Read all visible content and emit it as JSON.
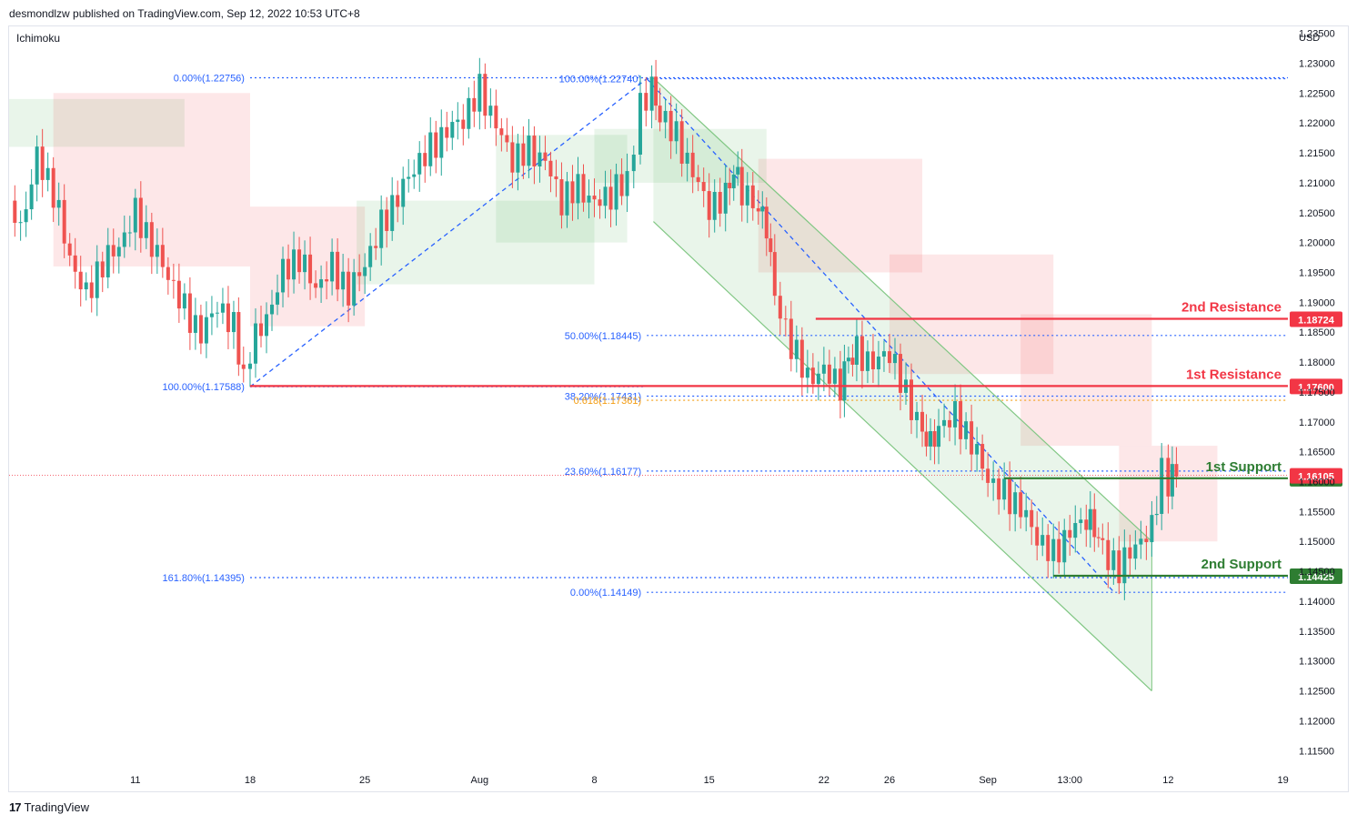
{
  "header": {
    "publisher": "desmondlzw published on TradingView.com, Sep 12, 2022 10:53 UTC+8"
  },
  "footer": {
    "brand": "TradingView",
    "logo_glyph": "17"
  },
  "chart_data": {
    "type": "candlestick",
    "title": "",
    "indicator": "Ichimoku",
    "currency": "USD",
    "ylim": [
      1.112,
      1.236
    ],
    "y_ticks": [
      "1.23500",
      "1.23000",
      "1.22500",
      "1.22000",
      "1.21500",
      "1.21000",
      "1.20500",
      "1.20000",
      "1.19500",
      "1.19000",
      "1.18500",
      "1.18000",
      "1.17500",
      "1.17000",
      "1.16500",
      "1.16000",
      "1.15500",
      "1.15000",
      "1.14500",
      "1.14000",
      "1.13500",
      "1.13000",
      "1.12500",
      "1.12000",
      "1.11500"
    ],
    "x_ticks": [
      {
        "label": "11",
        "day": 0
      },
      {
        "label": "18",
        "day": 7
      },
      {
        "label": "25",
        "day": 14
      },
      {
        "label": "Aug",
        "day": 21
      },
      {
        "label": "8",
        "day": 28
      },
      {
        "label": "15",
        "day": 35
      },
      {
        "label": "22",
        "day": 42
      },
      {
        "label": "26",
        "day": 46
      },
      {
        "label": "Sep",
        "day": 52
      },
      {
        "label": "13:00",
        "day": 57
      },
      {
        "label": "12",
        "day": 63
      },
      {
        "label": "19",
        "day": 70
      }
    ],
    "x_domain": [
      -7.7,
      70.3
    ],
    "price_path": [
      [
        -7.7,
        1.207
      ],
      [
        -7,
        1.203
      ],
      [
        -6,
        1.214
      ],
      [
        -5,
        1.208
      ],
      [
        -4,
        1.198
      ],
      [
        -3,
        1.191
      ],
      [
        -2,
        1.196
      ],
      [
        -1,
        1.2
      ],
      [
        0,
        1.205
      ],
      [
        1,
        1.199
      ],
      [
        2,
        1.195
      ],
      [
        3,
        1.189
      ],
      [
        4,
        1.184
      ],
      [
        5,
        1.19
      ],
      [
        6,
        1.186
      ],
      [
        6.6,
        1.178
      ],
      [
        7,
        1.182
      ],
      [
        8,
        1.188
      ],
      [
        9,
        1.195
      ],
      [
        10,
        1.197
      ],
      [
        11,
        1.193
      ],
      [
        12,
        1.196
      ],
      [
        13,
        1.191
      ],
      [
        14,
        1.197
      ],
      [
        15,
        1.203
      ],
      [
        16,
        1.207
      ],
      [
        17,
        1.213
      ],
      [
        18,
        1.216
      ],
      [
        19,
        1.218
      ],
      [
        20,
        1.221
      ],
      [
        21,
        1.226
      ],
      [
        22,
        1.219
      ],
      [
        23,
        1.214
      ],
      [
        24,
        1.216
      ],
      [
        25,
        1.213
      ],
      [
        26,
        1.207
      ],
      [
        27,
        1.21
      ],
      [
        28,
        1.206
      ],
      [
        29,
        1.208
      ],
      [
        30,
        1.211
      ],
      [
        30.8,
        1.223
      ],
      [
        31.5,
        1.226
      ],
      [
        32,
        1.222
      ],
      [
        33,
        1.218
      ],
      [
        34,
        1.211
      ],
      [
        35,
        1.206
      ],
      [
        36,
        1.208
      ],
      [
        36.5,
        1.213
      ],
      [
        37,
        1.208
      ],
      [
        38,
        1.206
      ],
      [
        38.5,
        1.203
      ],
      [
        39,
        1.19
      ],
      [
        40,
        1.183
      ],
      [
        41,
        1.178
      ],
      [
        42,
        1.178
      ],
      [
        43,
        1.176
      ],
      [
        43.5,
        1.18
      ],
      [
        44,
        1.182
      ],
      [
        45,
        1.179
      ],
      [
        46,
        1.182
      ],
      [
        47,
        1.175
      ],
      [
        48,
        1.168
      ],
      [
        48.5,
        1.166
      ],
      [
        49,
        1.17
      ],
      [
        50,
        1.171
      ],
      [
        51,
        1.166
      ],
      [
        52,
        1.161
      ],
      [
        53,
        1.158
      ],
      [
        54,
        1.155
      ],
      [
        55,
        1.151
      ],
      [
        56,
        1.148
      ],
      [
        57,
        1.151
      ],
      [
        58,
        1.154
      ],
      [
        58.5,
        1.152
      ],
      [
        59,
        1.148
      ],
      [
        60,
        1.145
      ],
      [
        61,
        1.15
      ],
      [
        62,
        1.152
      ],
      [
        62.6,
        1.162
      ],
      [
        63,
        1.16
      ],
      [
        63.5,
        1.161
      ]
    ],
    "ichimoku_cloud": [
      {
        "from": -7.7,
        "to": 3,
        "top": 1.224,
        "bottom": 1.216,
        "color": "bullish"
      },
      {
        "from": -5,
        "to": 7,
        "top": 1.225,
        "bottom": 1.196,
        "color": "bearish"
      },
      {
        "from": 7,
        "to": 14,
        "top": 1.206,
        "bottom": 1.186,
        "color": "bearish"
      },
      {
        "from": 13.5,
        "to": 28,
        "top": 1.207,
        "bottom": 1.193,
        "color": "bullish"
      },
      {
        "from": 22,
        "to": 30,
        "top": 1.218,
        "bottom": 1.2,
        "color": "bullish"
      },
      {
        "from": 28,
        "to": 38.5,
        "top": 1.219,
        "bottom": 1.21,
        "color": "bullish"
      },
      {
        "from": 38,
        "to": 48,
        "top": 1.214,
        "bottom": 1.195,
        "color": "bearish"
      },
      {
        "from": 46,
        "to": 56,
        "top": 1.198,
        "bottom": 1.178,
        "color": "bearish"
      },
      {
        "from": 54,
        "to": 62,
        "top": 1.188,
        "bottom": 1.166,
        "color": "bearish"
      },
      {
        "from": 60,
        "to": 66,
        "top": 1.166,
        "bottom": 1.15,
        "color": "bearish"
      }
    ],
    "channel": {
      "upper": [
        [
          31.6,
          1.2275
        ],
        [
          62,
          1.15
        ]
      ],
      "lower": [
        [
          31.6,
          1.2035
        ],
        [
          62,
          1.125
        ]
      ]
    },
    "fib_retracements": [
      {
        "label": "0.00%(1.22756)",
        "price": 1.22756,
        "from": 7,
        "to": 70.3,
        "color": "#2962ff"
      },
      {
        "label": "100.00%(1.17588)",
        "price": 1.17588,
        "from": 7,
        "to": 31,
        "color": "#2962ff"
      },
      {
        "label": "161.80%(1.14395)",
        "price": 1.14395,
        "from": 7,
        "to": 70.3,
        "color": "#2962ff"
      },
      {
        "label": "100.00%(1.22740)",
        "price": 1.2274,
        "from": 31.2,
        "to": 70.3,
        "color": "#2962ff"
      },
      {
        "label": "50.00%(1.18445)",
        "price": 1.18445,
        "from": 31.2,
        "to": 70.3,
        "color": "#2962ff"
      },
      {
        "label": "38.20%(1.17431)",
        "price": 1.17431,
        "from": 31.2,
        "to": 70.3,
        "color": "#2962ff"
      },
      {
        "label": "0.618(1.17361)",
        "price": 1.17361,
        "from": 31.2,
        "to": 70.3,
        "color": "#f39c12"
      },
      {
        "label": "23.60%(1.16177)",
        "price": 1.16177,
        "from": 31.2,
        "to": 70.3,
        "color": "#2962ff"
      },
      {
        "label": "0.00%(1.14149)",
        "price": 1.14149,
        "from": 31.2,
        "to": 70.3,
        "color": "#2962ff"
      }
    ],
    "levels": [
      {
        "name": "2nd Resistance",
        "price": 1.18724,
        "label": "1.18724",
        "from": 41.5,
        "color": "#f23645"
      },
      {
        "name": "1st Resistance",
        "price": 1.176,
        "label": "1.17600",
        "from": 7,
        "color": "#f23645"
      },
      {
        "name": "1st Support",
        "price": 1.16056,
        "label": "1.16056",
        "from": 53,
        "color": "#2e7d32"
      },
      {
        "name": "2nd Support",
        "price": 1.14425,
        "label": "1.14425",
        "from": 56,
        "color": "#2e7d32"
      }
    ],
    "current_price": {
      "label": "1.16105",
      "price": 1.16105,
      "color": "#f23645"
    }
  }
}
